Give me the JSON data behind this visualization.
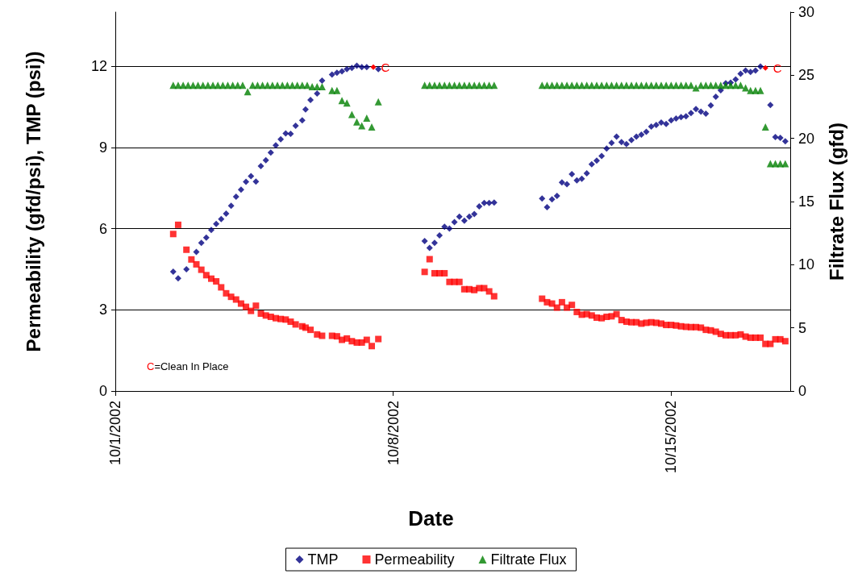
{
  "chart_data": {
    "type": "scatter",
    "xlabel": "Date",
    "ylabel": "Permeability (gfd/psi), TMP (psi))",
    "y2label": "Filtrate Flux (gfd)",
    "xlim": [
      "2002-10-01",
      "2002-10-18"
    ],
    "xticks": [
      {
        "value": "2002-10-01",
        "label": "10/1/2002"
      },
      {
        "value": "2002-10-08",
        "label": "10/8/2002"
      },
      {
        "value": "2002-10-15",
        "label": "10/15/2002"
      }
    ],
    "ylim": [
      0,
      14
    ],
    "yticks": [
      0,
      3,
      6,
      9,
      12
    ],
    "y2lim": [
      0,
      30
    ],
    "y2ticks": [
      0,
      5,
      10,
      15,
      20,
      25,
      30
    ],
    "grid": "y",
    "legend": "bottom",
    "annotations": [
      {
        "text": "C",
        "x": "2002-10-07T12:00",
        "y": 11.97
      },
      {
        "text": "C",
        "x": "2002-10-17T09:00",
        "y": 11.94
      },
      "C=Clean In Place"
    ],
    "series": [
      {
        "name": "TMP",
        "color": "#000080",
        "marker": "diamond",
        "x": [
          "2002-10-02T11:00",
          "2002-10-02T14:00",
          "2002-10-02T19:00",
          "2002-10-03T01:00",
          "2002-10-03T04:00",
          "2002-10-03T07:00",
          "2002-10-03T10:00",
          "2002-10-03T13:00",
          "2002-10-03T16:00",
          "2002-10-03T19:00",
          "2002-10-03T22:00",
          "2002-10-04T01:00",
          "2002-10-04T04:00",
          "2002-10-04T07:00",
          "2002-10-04T10:00",
          "2002-10-04T13:00",
          "2002-10-04T16:00",
          "2002-10-04T19:00",
          "2002-10-04T22:00",
          "2002-10-05T01:00",
          "2002-10-05T04:00",
          "2002-10-05T07:00",
          "2002-10-05T10:00",
          "2002-10-05T13:00",
          "2002-10-05T17:00",
          "2002-10-05T19:00",
          "2002-10-05T22:00",
          "2002-10-06T02:00",
          "2002-10-06T05:00",
          "2002-10-06T11:00",
          "2002-10-06T14:00",
          "2002-10-06T17:00",
          "2002-10-06T20:00",
          "2002-10-06T23:00",
          "2002-10-07T02:00",
          "2002-10-07T05:00",
          "2002-10-07T08:00",
          "2002-10-07T15:00",
          "2002-10-08T19:00",
          "2002-10-08T22:00",
          "2002-10-09T01:00",
          "2002-10-09T04:00",
          "2002-10-09T07:00",
          "2002-10-09T10:00",
          "2002-10-09T13:00",
          "2002-10-09T16:00",
          "2002-10-09T19:00",
          "2002-10-09T22:00",
          "2002-10-10T01:00",
          "2002-10-10T04:00",
          "2002-10-10T07:00",
          "2002-10-10T10:00",
          "2002-10-10T13:00",
          "2002-10-11T18:00",
          "2002-10-11T21:00",
          "2002-10-12T00:00",
          "2002-10-12T03:00",
          "2002-10-12T06:00",
          "2002-10-12T09:00",
          "2002-10-12T12:00",
          "2002-10-12T15:00",
          "2002-10-12T18:00",
          "2002-10-12T21:00",
          "2002-10-13T00:00",
          "2002-10-13T03:00",
          "2002-10-13T06:00",
          "2002-10-13T09:00",
          "2002-10-13T12:00",
          "2002-10-13T15:00",
          "2002-10-13T18:00",
          "2002-10-13T21:00",
          "2002-10-14T00:00",
          "2002-10-14T03:00",
          "2002-10-14T06:00",
          "2002-10-14T09:00",
          "2002-10-14T12:00",
          "2002-10-14T15:00",
          "2002-10-14T18:00",
          "2002-10-14T21:00",
          "2002-10-15T00:00",
          "2002-10-15T03:00",
          "2002-10-15T06:00",
          "2002-10-15T09:00",
          "2002-10-15T12:00",
          "2002-10-15T15:00",
          "2002-10-15T18:00",
          "2002-10-15T21:00",
          "2002-10-16T00:00",
          "2002-10-16T03:00",
          "2002-10-16T06:00",
          "2002-10-16T09:00",
          "2002-10-16T12:00",
          "2002-10-16T15:00",
          "2002-10-16T18:00",
          "2002-10-16T21:00",
          "2002-10-17T00:00",
          "2002-10-17T03:00",
          "2002-10-17T06:00",
          "2002-10-17T12:00",
          "2002-10-17T15:00",
          "2002-10-17T18:00",
          "2002-10-17T21:00"
        ],
        "values": [
          4.41,
          4.16,
          4.5,
          5.14,
          5.47,
          5.67,
          5.95,
          6.17,
          6.35,
          6.55,
          6.84,
          7.18,
          7.44,
          7.73,
          7.94,
          7.74,
          8.31,
          8.53,
          8.81,
          9.08,
          9.3,
          9.52,
          9.5,
          9.8,
          10.0,
          10.4,
          10.75,
          10.99,
          11.47,
          11.69,
          11.76,
          11.81,
          11.89,
          11.94,
          12.02,
          11.97,
          11.97,
          11.89,
          5.54,
          5.29,
          5.47,
          5.75,
          6.07,
          6.0,
          6.24,
          6.44,
          6.29,
          6.44,
          6.54,
          6.82,
          6.95,
          6.95,
          6.96,
          7.11,
          6.79,
          7.08,
          7.21,
          7.71,
          7.64,
          8.01,
          7.78,
          7.84,
          8.04,
          8.38,
          8.51,
          8.68,
          8.96,
          9.17,
          9.4,
          9.2,
          9.12,
          9.27,
          9.4,
          9.47,
          9.58,
          9.77,
          9.83,
          9.92,
          9.87,
          10.0,
          10.07,
          10.12,
          10.15,
          10.27,
          10.42,
          10.32,
          10.25,
          10.55,
          10.87,
          11.11,
          11.37,
          11.39,
          11.51,
          11.72,
          11.84,
          11.79,
          11.84,
          11.99,
          10.57,
          9.38,
          9.35,
          9.23
        ]
      },
      {
        "name": "Permeability",
        "color": "#ff0000",
        "marker": "square",
        "x": [
          "2002-10-02T11:00",
          "2002-10-02T14:00",
          "2002-10-02T19:00",
          "2002-10-02T22:00",
          "2002-10-03T01:00",
          "2002-10-03T04:00",
          "2002-10-03T07:00",
          "2002-10-03T10:00",
          "2002-10-03T13:00",
          "2002-10-03T16:00",
          "2002-10-03T19:00",
          "2002-10-03T22:00",
          "2002-10-04T01:00",
          "2002-10-04T04:00",
          "2002-10-04T07:00",
          "2002-10-04T10:00",
          "2002-10-04T13:00",
          "2002-10-04T16:00",
          "2002-10-04T19:00",
          "2002-10-04T22:00",
          "2002-10-05T01:00",
          "2002-10-05T04:00",
          "2002-10-05T07:00",
          "2002-10-05T10:00",
          "2002-10-05T13:00",
          "2002-10-05T17:00",
          "2002-10-05T19:00",
          "2002-10-05T22:00",
          "2002-10-06T02:00",
          "2002-10-06T05:00",
          "2002-10-06T11:00",
          "2002-10-06T14:00",
          "2002-10-06T17:00",
          "2002-10-06T20:00",
          "2002-10-06T23:00",
          "2002-10-07T02:00",
          "2002-10-07T05:00",
          "2002-10-07T08:00",
          "2002-10-07T11:00",
          "2002-10-07T15:00",
          "2002-10-08T19:00",
          "2002-10-08T22:00",
          "2002-10-09T01:00",
          "2002-10-09T04:00",
          "2002-10-09T07:00",
          "2002-10-09T10:00",
          "2002-10-09T13:00",
          "2002-10-09T16:00",
          "2002-10-09T19:00",
          "2002-10-09T22:00",
          "2002-10-10T01:00",
          "2002-10-10T04:00",
          "2002-10-10T07:00",
          "2002-10-10T10:00",
          "2002-10-10T13:00",
          "2002-10-11T18:00",
          "2002-10-11T21:00",
          "2002-10-12T00:00",
          "2002-10-12T03:00",
          "2002-10-12T06:00",
          "2002-10-12T09:00",
          "2002-10-12T12:00",
          "2002-10-12T15:00",
          "2002-10-12T18:00",
          "2002-10-12T21:00",
          "2002-10-13T00:00",
          "2002-10-13T03:00",
          "2002-10-13T06:00",
          "2002-10-13T09:00",
          "2002-10-13T12:00",
          "2002-10-13T15:00",
          "2002-10-13T18:00",
          "2002-10-13T21:00",
          "2002-10-14T00:00",
          "2002-10-14T03:00",
          "2002-10-14T06:00",
          "2002-10-14T09:00",
          "2002-10-14T12:00",
          "2002-10-14T15:00",
          "2002-10-14T18:00",
          "2002-10-14T21:00",
          "2002-10-15T00:00",
          "2002-10-15T03:00",
          "2002-10-15T06:00",
          "2002-10-15T09:00",
          "2002-10-15T12:00",
          "2002-10-15T15:00",
          "2002-10-15T18:00",
          "2002-10-15T21:00",
          "2002-10-16T00:00",
          "2002-10-16T03:00",
          "2002-10-16T06:00",
          "2002-10-16T09:00",
          "2002-10-16T12:00",
          "2002-10-16T15:00",
          "2002-10-16T18:00",
          "2002-10-16T21:00",
          "2002-10-17T00:00",
          "2002-10-17T03:00",
          "2002-10-17T06:00",
          "2002-10-17T09:00",
          "2002-10-17T12:00",
          "2002-10-17T15:00",
          "2002-10-17T18:00",
          "2002-10-17T21:00"
        ],
        "values": [
          5.8,
          6.14,
          5.22,
          4.86,
          4.68,
          4.48,
          4.28,
          4.15,
          4.05,
          3.83,
          3.61,
          3.48,
          3.38,
          3.23,
          3.11,
          2.96,
          3.15,
          2.86,
          2.79,
          2.74,
          2.69,
          2.66,
          2.64,
          2.56,
          2.46,
          2.39,
          2.34,
          2.26,
          2.09,
          2.04,
          2.04,
          2.02,
          1.89,
          1.94,
          1.84,
          1.79,
          1.79,
          1.89,
          1.66,
          1.92,
          4.4,
          4.87,
          4.35,
          4.35,
          4.35,
          4.03,
          4.03,
          4.03,
          3.76,
          3.76,
          3.73,
          3.8,
          3.8,
          3.68,
          3.5,
          3.41,
          3.28,
          3.23,
          3.08,
          3.28,
          3.08,
          3.18,
          2.92,
          2.82,
          2.84,
          2.79,
          2.71,
          2.69,
          2.74,
          2.76,
          2.84,
          2.62,
          2.56,
          2.54,
          2.54,
          2.49,
          2.52,
          2.54,
          2.52,
          2.49,
          2.44,
          2.44,
          2.42,
          2.39,
          2.37,
          2.36,
          2.36,
          2.34,
          2.26,
          2.24,
          2.19,
          2.11,
          2.06,
          2.06,
          2.06,
          2.09,
          2.01,
          1.97,
          1.97,
          1.97,
          1.74,
          1.74,
          1.91,
          1.91,
          1.84
        ]
      },
      {
        "name": "Filtrate Flux",
        "color": "#008000",
        "marker": "triangle",
        "axis": "y2",
        "x": [
          "2002-10-02T11:00",
          "2002-10-02T14:00",
          "2002-10-02T17:00",
          "2002-10-02T20:00",
          "2002-10-02T23:00",
          "2002-10-03T02:00",
          "2002-10-03T05:00",
          "2002-10-03T08:00",
          "2002-10-03T11:00",
          "2002-10-03T14:00",
          "2002-10-03T17:00",
          "2002-10-03T20:00",
          "2002-10-03T23:00",
          "2002-10-04T02:00",
          "2002-10-04T05:00",
          "2002-10-04T08:00",
          "2002-10-04T11:00",
          "2002-10-04T14:00",
          "2002-10-04T17:00",
          "2002-10-04T20:00",
          "2002-10-04T23:00",
          "2002-10-05T02:00",
          "2002-10-05T05:00",
          "2002-10-05T08:00",
          "2002-10-05T11:00",
          "2002-10-05T14:00",
          "2002-10-05T17:00",
          "2002-10-05T20:00",
          "2002-10-05T23:00",
          "2002-10-06T02:00",
          "2002-10-06T05:00",
          "2002-10-06T11:00",
          "2002-10-06T14:00",
          "2002-10-06T17:00",
          "2002-10-06T20:00",
          "2002-10-06T23:00",
          "2002-10-07T02:00",
          "2002-10-07T05:00",
          "2002-10-07T08:00",
          "2002-10-07T11:00",
          "2002-10-07T15:00",
          "2002-10-08T19:00",
          "2002-10-08T22:00",
          "2002-10-09T01:00",
          "2002-10-09T04:00",
          "2002-10-09T07:00",
          "2002-10-09T10:00",
          "2002-10-09T13:00",
          "2002-10-09T16:00",
          "2002-10-09T19:00",
          "2002-10-09T22:00",
          "2002-10-10T01:00",
          "2002-10-10T04:00",
          "2002-10-10T07:00",
          "2002-10-10T10:00",
          "2002-10-10T13:00",
          "2002-10-11T18:00",
          "2002-10-11T21:00",
          "2002-10-12T00:00",
          "2002-10-12T03:00",
          "2002-10-12T06:00",
          "2002-10-12T09:00",
          "2002-10-12T12:00",
          "2002-10-12T15:00",
          "2002-10-12T18:00",
          "2002-10-12T21:00",
          "2002-10-13T00:00",
          "2002-10-13T03:00",
          "2002-10-13T06:00",
          "2002-10-13T09:00",
          "2002-10-13T12:00",
          "2002-10-13T15:00",
          "2002-10-13T18:00",
          "2002-10-13T21:00",
          "2002-10-14T00:00",
          "2002-10-14T03:00",
          "2002-10-14T06:00",
          "2002-10-14T09:00",
          "2002-10-14T12:00",
          "2002-10-14T15:00",
          "2002-10-14T18:00",
          "2002-10-14T21:00",
          "2002-10-15T00:00",
          "2002-10-15T03:00",
          "2002-10-15T06:00",
          "2002-10-15T09:00",
          "2002-10-15T12:00",
          "2002-10-15T15:00",
          "2002-10-15T18:00",
          "2002-10-15T21:00",
          "2002-10-16T00:00",
          "2002-10-16T03:00",
          "2002-10-16T06:00",
          "2002-10-16T09:00",
          "2002-10-16T12:00",
          "2002-10-16T15:00",
          "2002-10-16T18:00",
          "2002-10-16T21:00",
          "2002-10-17T00:00",
          "2002-10-17T03:00",
          "2002-10-17T06:00",
          "2002-10-17T09:00",
          "2002-10-17T12:00",
          "2002-10-17T15:00",
          "2002-10-17T18:00",
          "2002-10-17T21:00"
        ],
        "values": [
          24.2,
          24.2,
          24.2,
          24.2,
          24.2,
          24.2,
          24.2,
          24.2,
          24.2,
          24.2,
          24.2,
          24.2,
          24.2,
          24.2,
          24.2,
          23.7,
          24.2,
          24.2,
          24.2,
          24.2,
          24.2,
          24.2,
          24.2,
          24.2,
          24.2,
          24.2,
          24.2,
          24.2,
          24.1,
          24.1,
          24.1,
          23.8,
          23.8,
          23.0,
          22.8,
          21.9,
          21.3,
          21.0,
          21.6,
          20.9,
          22.9,
          24.2,
          24.2,
          24.2,
          24.2,
          24.2,
          24.2,
          24.2,
          24.2,
          24.2,
          24.2,
          24.2,
          24.2,
          24.2,
          24.2,
          24.2,
          24.2,
          24.2,
          24.2,
          24.2,
          24.2,
          24.2,
          24.2,
          24.2,
          24.2,
          24.2,
          24.2,
          24.2,
          24.2,
          24.2,
          24.2,
          24.2,
          24.2,
          24.2,
          24.2,
          24.2,
          24.2,
          24.2,
          24.2,
          24.2,
          24.2,
          24.2,
          24.2,
          24.2,
          24.2,
          24.2,
          24.2,
          24.0,
          24.2,
          24.2,
          24.2,
          24.2,
          24.2,
          24.2,
          24.2,
          24.2,
          24.2,
          24.0,
          23.8,
          23.8,
          23.8,
          20.9,
          18.0,
          18.0,
          18.0,
          18.0
        ]
      }
    ]
  }
}
